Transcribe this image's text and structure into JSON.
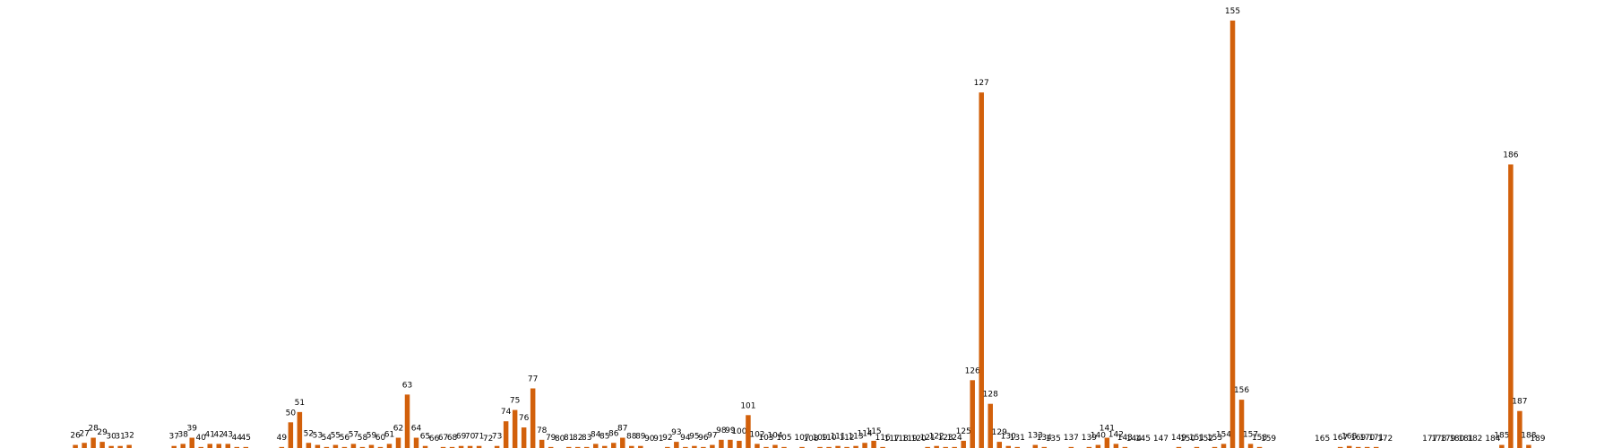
{
  "chart_data": {
    "type": "bar",
    "color": "#d2600b",
    "x": [
      26,
      27,
      28,
      29,
      30,
      31,
      32,
      37,
      38,
      39,
      40,
      41,
      42,
      43,
      44,
      45,
      49,
      50,
      51,
      52,
      53,
      54,
      55,
      56,
      57,
      58,
      59,
      60,
      61,
      62,
      63,
      64,
      65,
      66,
      67,
      68,
      69,
      70,
      71,
      72,
      73,
      74,
      75,
      76,
      77,
      78,
      79,
      80,
      81,
      82,
      83,
      84,
      85,
      86,
      87,
      88,
      89,
      90,
      91,
      92,
      93,
      94,
      95,
      96,
      97,
      98,
      99,
      100,
      101,
      102,
      103,
      104,
      105,
      107,
      108,
      109,
      110,
      111,
      112,
      113,
      114,
      115,
      116,
      117,
      118,
      119,
      120,
      121,
      122,
      123,
      124,
      125,
      126,
      127,
      128,
      129,
      130,
      131,
      133,
      134,
      135,
      137,
      139,
      140,
      141,
      142,
      143,
      144,
      145,
      147,
      149,
      150,
      151,
      152,
      153,
      154,
      155,
      156,
      157,
      158,
      159,
      165,
      167,
      168,
      169,
      170,
      171,
      172,
      177,
      178,
      179,
      180,
      181,
      182,
      184,
      185,
      186,
      187,
      188,
      189
    ],
    "values": [
      3,
      5,
      10,
      6,
      2,
      2,
      3,
      2,
      4,
      10,
      1,
      4,
      4,
      4,
      1,
      1,
      1,
      25,
      35,
      5,
      3,
      1,
      3,
      1,
      4,
      1,
      3,
      1,
      4,
      10,
      52,
      10,
      2,
      0,
      1,
      1,
      2,
      2,
      2,
      0,
      2,
      26,
      37,
      20,
      58,
      8,
      1,
      0,
      1,
      1,
      1,
      4,
      2,
      5,
      10,
      2,
      2,
      0,
      0,
      1,
      6,
      1,
      2,
      1,
      3,
      8,
      8,
      7,
      32,
      4,
      1,
      3,
      1,
      1,
      0,
      1,
      1,
      2,
      1,
      2,
      5,
      7,
      1,
      0,
      0,
      0,
      0,
      1,
      2,
      1,
      1,
      7,
      66,
      346,
      43,
      6,
      2,
      1,
      3,
      1,
      0,
      1,
      1,
      3,
      10,
      4,
      1,
      0,
      0,
      0,
      1,
      0,
      1,
      0,
      1,
      4,
      416,
      47,
      4,
      1,
      0,
      0,
      1,
      2,
      1,
      1,
      1,
      0,
      0,
      0,
      0,
      0,
      0,
      0,
      0,
      3,
      276,
      36,
      3,
      0
    ],
    "xlim": [
      17.6,
      197.4
    ],
    "ylim": [
      0,
      436
    ]
  }
}
